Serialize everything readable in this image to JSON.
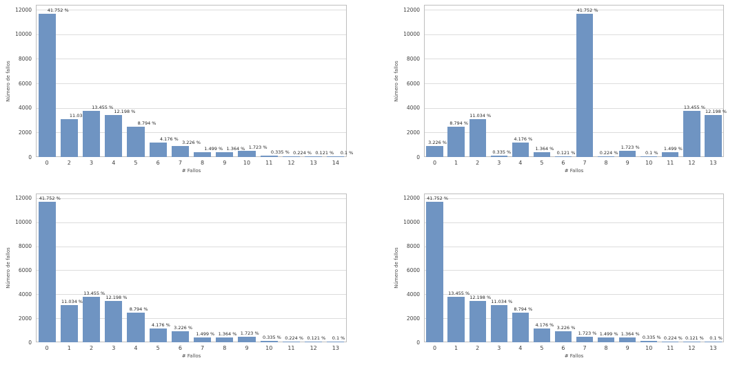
{
  "figure": {
    "background": "#ffffff",
    "bar_color": "#6f94c2",
    "grid_color": "#dcdcdc",
    "spine_color": "#bdbdbd"
  },
  "chart_data": [
    {
      "type": "bar",
      "position": "top-left",
      "xlabel": "# Fallos",
      "ylabel": "Número de fallos",
      "ylim": [
        0,
        12000
      ],
      "yticks": [
        0,
        2000,
        4000,
        6000,
        8000,
        10000,
        12000
      ],
      "grid": true,
      "categories": [
        "0",
        "2",
        "3",
        "4",
        "5",
        "6",
        "7",
        "8",
        "9",
        "10",
        "11",
        "12",
        "13",
        "14"
      ],
      "values": [
        11690,
        3089,
        3767,
        3415,
        2462,
        1169,
        903,
        420,
        382,
        482,
        94,
        63,
        34,
        28
      ],
      "bar_labels": [
        "41.752 %",
        "11.034 %",
        "13.455 %",
        "12.198 %",
        "8.794 %",
        "4.176 %",
        "3.226 %",
        "1.499 %",
        "1.364 %",
        "1.723 %",
        "0.335 %",
        "0.224 %",
        "0.121 %",
        "0.1 %"
      ]
    },
    {
      "type": "bar",
      "position": "top-right",
      "xlabel": "# Fallos",
      "ylabel": "Número de fallos",
      "ylim": [
        0,
        12000
      ],
      "yticks": [
        0,
        2000,
        4000,
        6000,
        8000,
        10000,
        12000
      ],
      "grid": true,
      "categories": [
        "0",
        "1",
        "2",
        "3",
        "4",
        "5",
        "6",
        "7",
        "8",
        "9",
        "10",
        "11",
        "12",
        "13"
      ],
      "values": [
        903,
        2462,
        3089,
        94,
        1169,
        382,
        34,
        11690,
        63,
        482,
        28,
        420,
        3767,
        3415
      ],
      "bar_labels": [
        "3.226 %",
        "8.794 %",
        "11.034 %",
        "0.335 %",
        "4.176 %",
        "1.364 %",
        "0.121 %",
        "41.752 %",
        "0.224 %",
        "1.723 %",
        "0.1 %",
        "1.499 %",
        "13.455 %",
        "12.198 %"
      ]
    },
    {
      "type": "bar",
      "position": "bottom-left",
      "xlabel": "# Fallos",
      "ylabel": "Número de fallos",
      "ylim": [
        0,
        12000
      ],
      "yticks": [
        0,
        2000,
        4000,
        6000,
        8000,
        10000,
        12000
      ],
      "grid": true,
      "categories": [
        "0",
        "1",
        "2",
        "3",
        "4",
        "5",
        "6",
        "7",
        "8",
        "9",
        "10",
        "11",
        "12",
        "13"
      ],
      "values": [
        11690,
        3089,
        3767,
        3415,
        2462,
        1169,
        903,
        420,
        382,
        482,
        94,
        63,
        34,
        28
      ],
      "bar_labels": [
        "41.752 %",
        "11.034 %",
        "13.455 %",
        "12.198 %",
        "8.794 %",
        "4.176 %",
        "3.226 %",
        "1.499 %",
        "1.364 %",
        "1.723 %",
        "0.335 %",
        "0.224 %",
        "0.121 %",
        "0.1 %"
      ]
    },
    {
      "type": "bar",
      "position": "bottom-right",
      "xlabel": "# Fallos",
      "ylabel": "Número de fallos",
      "ylim": [
        0,
        12000
      ],
      "yticks": [
        0,
        2000,
        4000,
        6000,
        8000,
        10000,
        12000
      ],
      "grid": true,
      "categories": [
        "0",
        "1",
        "2",
        "3",
        "4",
        "5",
        "6",
        "7",
        "8",
        "9",
        "10",
        "11",
        "12",
        "13"
      ],
      "values": [
        11690,
        3767,
        3415,
        3089,
        2462,
        1169,
        903,
        482,
        420,
        382,
        94,
        63,
        34,
        28
      ],
      "bar_labels": [
        "41.752 %",
        "13.455 %",
        "12.198 %",
        "11.034 %",
        "8.794 %",
        "4.176 %",
        "3.226 %",
        "1.723 %",
        "1.499 %",
        "1.364 %",
        "0.335 %",
        "0.224 %",
        "0.121 %",
        "0.1 %"
      ]
    }
  ]
}
